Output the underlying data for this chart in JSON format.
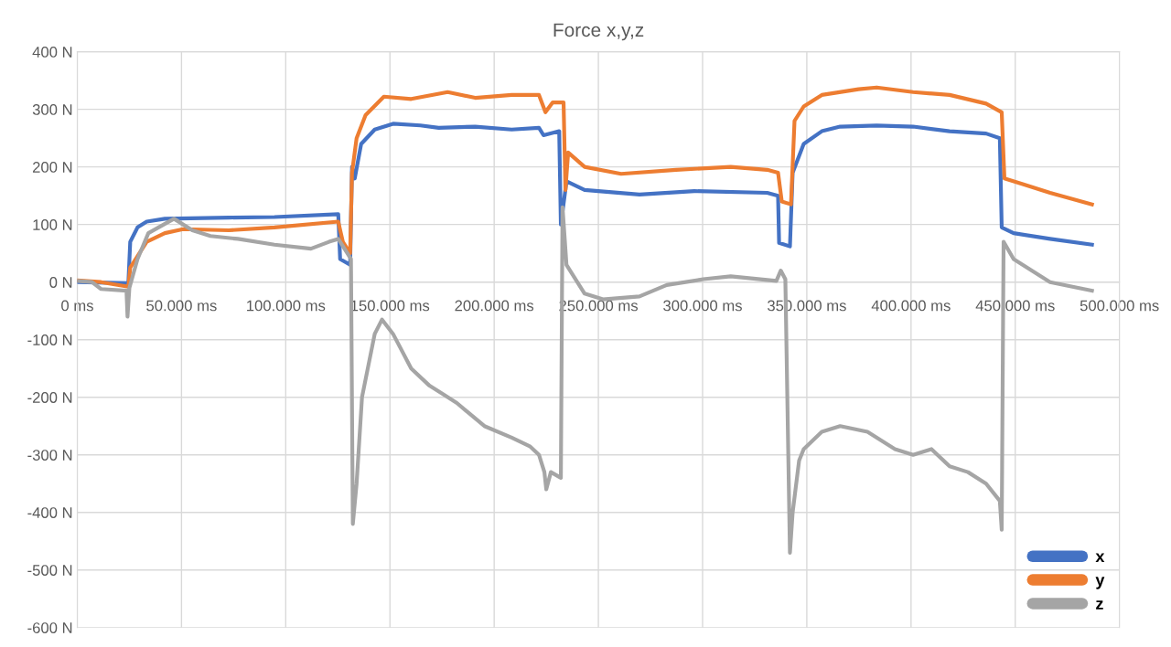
{
  "chart_data": {
    "type": "line",
    "title": "Force x,y,z",
    "xlim": [
      0,
      500000
    ],
    "ylim": [
      -600,
      400
    ],
    "xticks": [
      {
        "value": 0,
        "label": "0 ms"
      },
      {
        "value": 50000,
        "label": "50.000 ms"
      },
      {
        "value": 100000,
        "label": "100.000 ms"
      },
      {
        "value": 150000,
        "label": "150.000 ms"
      },
      {
        "value": 200000,
        "label": "200.000 ms"
      },
      {
        "value": 250000,
        "label": "250.000 ms"
      },
      {
        "value": 300000,
        "label": "300.000 ms"
      },
      {
        "value": 350000,
        "label": "350.000 ms"
      },
      {
        "value": 400000,
        "label": "400.000 ms"
      },
      {
        "value": 450000,
        "label": "450.000 ms"
      },
      {
        "value": 500000,
        "label": "500.000 ms"
      }
    ],
    "yticks": [
      {
        "value": -600,
        "label": "-600 N"
      },
      {
        "value": -500,
        "label": "-500 N"
      },
      {
        "value": -400,
        "label": "-400 N"
      },
      {
        "value": -300,
        "label": "-300 N"
      },
      {
        "value": -200,
        "label": "-200 N"
      },
      {
        "value": -100,
        "label": "-100 N"
      },
      {
        "value": 0,
        "label": "0 N"
      },
      {
        "value": 100,
        "label": "100 N"
      },
      {
        "value": 200,
        "label": "200 N"
      },
      {
        "value": 300,
        "label": "300 N"
      },
      {
        "value": 400,
        "label": "400 N"
      }
    ],
    "grid": true,
    "legend": "bottom right",
    "marker": "none",
    "line_style": "solid",
    "series": [
      {
        "name": "x",
        "color": "#4472c4",
        "x": [
          0,
          24500,
          25400,
          28900,
          33300,
          42000,
          72700,
          94600,
          125200,
          126100,
          130900,
          131800,
          133100,
          136200,
          142700,
          151500,
          164600,
          173400,
          190900,
          208400,
          221500,
          223700,
          231200,
          232000,
          234700,
          243400,
          269700,
          296000,
          331000,
          336200,
          336700,
          341900,
          343200,
          348500,
          357200,
          366000,
          383500,
          401000,
          418500,
          436000,
          442600,
          443500,
          449200,
          466700,
          486800
        ],
        "values": [
          0,
          -2,
          70,
          95,
          105,
          110,
          112,
          113,
          118,
          40,
          30,
          200,
          180,
          240,
          265,
          275,
          272,
          268,
          270,
          265,
          268,
          255,
          262,
          100,
          175,
          160,
          152,
          158,
          155,
          150,
          68,
          62,
          190,
          240,
          262,
          270,
          272,
          270,
          262,
          258,
          250,
          95,
          85,
          75,
          65
        ]
      },
      {
        "name": "y",
        "color": "#ed7d31",
        "x": [
          0,
          11400,
          24500,
          25400,
          33300,
          42000,
          50800,
          72700,
          94600,
          125200,
          127400,
          130900,
          131800,
          134000,
          138300,
          147100,
          160200,
          177700,
          190900,
          208400,
          221500,
          224600,
          228100,
          233300,
          234200,
          235500,
          243400,
          260900,
          287200,
          313500,
          331000,
          336200,
          338000,
          342400,
          344100,
          348500,
          357200,
          374800,
          383500,
          401000,
          418500,
          436000,
          443500,
          444800,
          453600,
          466700,
          486800
        ],
        "values": [
          3,
          0,
          -8,
          25,
          70,
          85,
          92,
          90,
          95,
          105,
          70,
          50,
          190,
          250,
          290,
          322,
          318,
          330,
          320,
          325,
          325,
          295,
          312,
          312,
          160,
          225,
          200,
          188,
          195,
          200,
          195,
          190,
          140,
          135,
          280,
          305,
          325,
          335,
          338,
          330,
          325,
          310,
          295,
          180,
          170,
          155,
          135
        ]
      },
      {
        "name": "z",
        "color": "#a5a5a5",
        "x": [
          0,
          7000,
          11400,
          23600,
          24100,
          25000,
          28900,
          34100,
          46400,
          55200,
          63900,
          77100,
          94600,
          112100,
          120800,
          125200,
          131300,
          132200,
          134000,
          136600,
          142700,
          146200,
          151500,
          160200,
          169000,
          175600,
          182100,
          195300,
          208400,
          217100,
          221500,
          224100,
          225000,
          227200,
          232000,
          232800,
          234700,
          243400,
          252200,
          269700,
          282800,
          300300,
          313500,
          335400,
          337500,
          339700,
          341900,
          343200,
          346300,
          348500,
          357200,
          366000,
          379100,
          392300,
          401000,
          409800,
          418500,
          427300,
          436000,
          442600,
          443500,
          444400,
          449200,
          466700,
          486800
        ],
        "values": [
          2,
          0,
          -12,
          -15,
          -60,
          -10,
          40,
          85,
          110,
          90,
          80,
          75,
          65,
          58,
          70,
          75,
          40,
          -420,
          -350,
          -200,
          -90,
          -65,
          -90,
          -150,
          -180,
          -195,
          -210,
          -250,
          -270,
          -285,
          -300,
          -330,
          -360,
          -330,
          -340,
          130,
          30,
          -20,
          -30,
          -25,
          -5,
          5,
          10,
          2,
          20,
          5,
          -470,
          -400,
          -310,
          -290,
          -260,
          -250,
          -260,
          -290,
          -300,
          -290,
          -320,
          -330,
          -350,
          -380,
          -430,
          70,
          40,
          0,
          -15
        ]
      }
    ]
  }
}
